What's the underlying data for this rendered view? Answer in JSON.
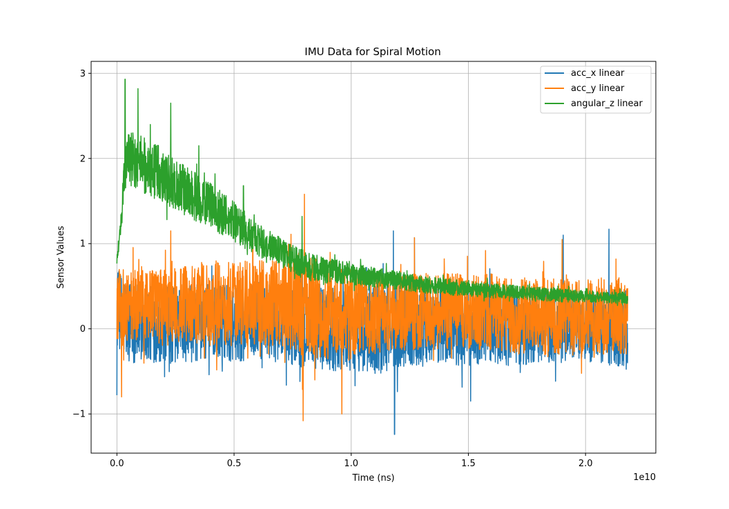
{
  "chart_data": {
    "type": "line",
    "title": "IMU Data for Spiral Motion",
    "xlabel": "Time (ns)",
    "ylabel": "Sensor Values",
    "x_offset_text": "1e10",
    "xlim": [
      -0.11,
      2.3
    ],
    "ylim": [
      -1.46,
      3.14
    ],
    "x_ticks": [
      0.0,
      0.5,
      1.0,
      1.5,
      2.0
    ],
    "x_tick_labels": [
      "0.0",
      "0.5",
      "1.0",
      "1.5",
      "2.0"
    ],
    "y_ticks": [
      -1,
      0,
      1,
      2,
      3
    ],
    "y_tick_labels": [
      "−1",
      "0",
      "1",
      "2",
      "3"
    ],
    "grid": true,
    "legend_position": "top-right",
    "series": [
      {
        "name": "acc_x linear",
        "color": "#1f77b4",
        "x": [
          0.0,
          0.05,
          0.1,
          0.2,
          0.3,
          0.4,
          0.5,
          0.6,
          0.7,
          0.8,
          0.9,
          1.0,
          1.1,
          1.2,
          1.3,
          1.4,
          1.5,
          1.6,
          1.7,
          1.8,
          1.9,
          2.0,
          2.1,
          2.18
        ],
        "center": [
          0.2,
          0.1,
          0.05,
          0.05,
          0.05,
          0.1,
          0.05,
          0.1,
          0.05,
          0.05,
          0.0,
          0.0,
          0.0,
          0.05,
          0.05,
          0.05,
          0.0,
          0.05,
          0.0,
          0.0,
          0.0,
          0.0,
          0.0,
          0.0
        ],
        "amplitude": [
          0.5,
          0.5,
          0.45,
          0.45,
          0.45,
          0.45,
          0.45,
          0.45,
          0.45,
          0.5,
          0.5,
          0.5,
          0.55,
          0.5,
          0.5,
          0.45,
          0.45,
          0.45,
          0.45,
          0.4,
          0.4,
          0.4,
          0.45,
          0.45
        ],
        "peaks": [
          [
            0.0,
            -0.78
          ],
          [
            1.185,
            -1.24
          ],
          [
            1.18,
            1.15
          ],
          [
            1.27,
            1.07
          ],
          [
            1.905,
            1.1
          ],
          [
            2.1,
            1.17
          ],
          [
            1.51,
            -0.85
          ]
        ]
      },
      {
        "name": "acc_y linear",
        "color": "#ff7f0e",
        "x": [
          0.0,
          0.05,
          0.1,
          0.2,
          0.3,
          0.4,
          0.5,
          0.6,
          0.7,
          0.8,
          0.9,
          1.0,
          1.1,
          1.2,
          1.3,
          1.4,
          1.5,
          1.6,
          1.7,
          1.8,
          1.9,
          2.0,
          2.1,
          2.18
        ],
        "center": [
          0.25,
          0.25,
          0.25,
          0.25,
          0.3,
          0.3,
          0.3,
          0.3,
          0.3,
          0.3,
          0.2,
          0.2,
          0.2,
          0.2,
          0.2,
          0.2,
          0.2,
          0.2,
          0.15,
          0.15,
          0.15,
          0.15,
          0.15,
          0.15
        ],
        "amplitude": [
          0.45,
          0.45,
          0.45,
          0.45,
          0.45,
          0.5,
          0.5,
          0.5,
          0.5,
          0.65,
          0.55,
          0.5,
          0.5,
          0.45,
          0.45,
          0.45,
          0.45,
          0.45,
          0.45,
          0.45,
          0.45,
          0.45,
          0.45,
          0.45
        ],
        "peaks": [
          [
            0.8,
            1.58
          ],
          [
            0.795,
            -1.08
          ],
          [
            0.96,
            -1.0
          ],
          [
            0.23,
            1.15
          ],
          [
            0.58,
            1.2
          ],
          [
            1.27,
            1.07
          ],
          [
            1.9,
            1.05
          ],
          [
            2.13,
            0.82
          ],
          [
            0.02,
            -0.8
          ]
        ]
      },
      {
        "name": "angular_z linear",
        "color": "#2ca02c",
        "x": [
          0.0,
          0.02,
          0.03,
          0.05,
          0.1,
          0.2,
          0.3,
          0.4,
          0.5,
          0.6,
          0.7,
          0.8,
          0.9,
          1.0,
          1.1,
          1.2,
          1.3,
          1.4,
          1.5,
          1.6,
          1.7,
          1.8,
          1.9,
          2.0,
          2.1,
          2.18
        ],
        "center": [
          0.8,
          1.3,
          1.8,
          2.0,
          1.95,
          1.8,
          1.6,
          1.45,
          1.25,
          1.05,
          0.9,
          0.75,
          0.68,
          0.65,
          0.6,
          0.57,
          0.52,
          0.5,
          0.47,
          0.45,
          0.43,
          0.41,
          0.39,
          0.38,
          0.37,
          0.36
        ],
        "amplitude": [
          0.05,
          0.15,
          0.25,
          0.3,
          0.35,
          0.33,
          0.3,
          0.27,
          0.24,
          0.2,
          0.17,
          0.17,
          0.15,
          0.13,
          0.12,
          0.11,
          0.1,
          0.1,
          0.09,
          0.09,
          0.08,
          0.08,
          0.08,
          0.07,
          0.07,
          0.07
        ],
        "peaks": [
          [
            0.035,
            2.93
          ],
          [
            0.09,
            2.82
          ],
          [
            0.23,
            2.65
          ],
          [
            0.35,
            2.15
          ],
          [
            0.54,
            1.68
          ],
          [
            0.79,
            1.32
          ]
        ]
      }
    ]
  }
}
